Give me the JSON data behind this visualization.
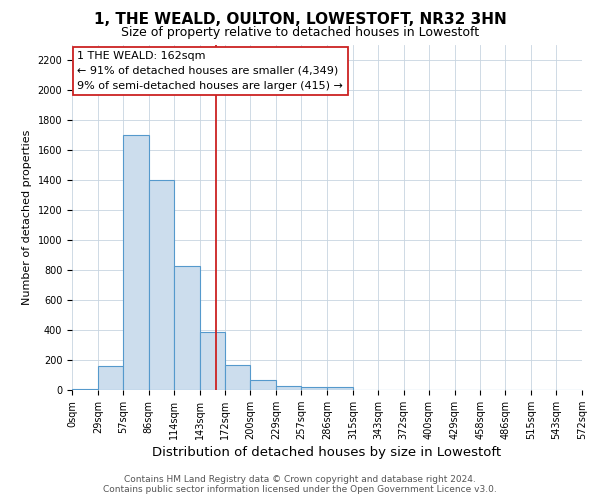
{
  "title": "1, THE WEALD, OULTON, LOWESTOFT, NR32 3HN",
  "subtitle": "Size of property relative to detached houses in Lowestoft",
  "xlabel": "Distribution of detached houses by size in Lowestoft",
  "ylabel": "Number of detached properties",
  "footer_line1": "Contains HM Land Registry data © Crown copyright and database right 2024.",
  "footer_line2": "Contains public sector information licensed under the Open Government Licence v3.0.",
  "annotation_line1": "1 THE WEALD: 162sqm",
  "annotation_line2": "← 91% of detached houses are smaller (4,349)",
  "annotation_line3": "9% of semi-detached houses are larger (415) →",
  "bar_edges": [
    0,
    29,
    57,
    86,
    114,
    143,
    172,
    200,
    229,
    257,
    286,
    315,
    343,
    372,
    400,
    429,
    458,
    486,
    515,
    543,
    572
  ],
  "bar_heights": [
    5,
    160,
    1700,
    1400,
    830,
    390,
    165,
    65,
    30,
    20,
    20,
    0,
    0,
    0,
    0,
    0,
    0,
    0,
    0,
    0
  ],
  "bar_color": "#ccdded",
  "bar_edgecolor": "#5599cc",
  "vline_color": "#cc2222",
  "vline_x": 162,
  "annotation_box_edgecolor": "#cc2222",
  "annotation_box_facecolor": "#ffffff",
  "ax_facecolor": "#ffffff",
  "grid_color": "#c8d4e0",
  "ylim": [
    0,
    2300
  ],
  "yticks": [
    0,
    200,
    400,
    600,
    800,
    1000,
    1200,
    1400,
    1600,
    1800,
    2000,
    2200
  ],
  "tick_labels": [
    "0sqm",
    "29sqm",
    "57sqm",
    "86sqm",
    "114sqm",
    "143sqm",
    "172sqm",
    "200sqm",
    "229sqm",
    "257sqm",
    "286sqm",
    "315sqm",
    "343sqm",
    "372sqm",
    "400sqm",
    "429sqm",
    "458sqm",
    "486sqm",
    "515sqm",
    "543sqm",
    "572sqm"
  ],
  "title_fontsize": 11,
  "subtitle_fontsize": 9,
  "xlabel_fontsize": 9.5,
  "ylabel_fontsize": 8,
  "tick_fontsize": 7,
  "annotation_fontsize": 8,
  "footer_fontsize": 6.5
}
